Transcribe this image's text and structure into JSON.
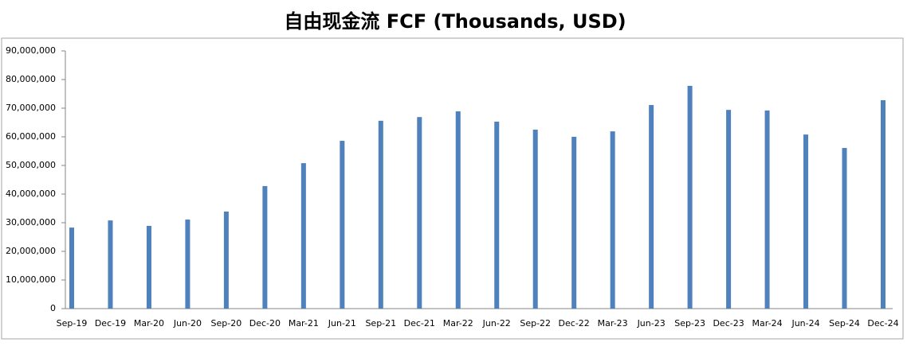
{
  "chart_data": {
    "type": "bar",
    "title": "自由现金流 FCF (Thousands, USD)",
    "categories": [
      "Sep-19",
      "Dec-19",
      "Mar-20",
      "Jun-20",
      "Sep-20",
      "Dec-20",
      "Mar-21",
      "Jun-21",
      "Sep-21",
      "Dec-21",
      "Mar-22",
      "Jun-22",
      "Sep-22",
      "Dec-22",
      "Mar-23",
      "Jun-23",
      "Sep-23",
      "Dec-23",
      "Mar-24",
      "Jun-24",
      "Sep-24",
      "Dec-24"
    ],
    "values": [
      28300000,
      30800000,
      28900000,
      31100000,
      33900000,
      42800000,
      50800000,
      58600000,
      65600000,
      66900000,
      68900000,
      65300000,
      62500000,
      60000000,
      61900000,
      71100000,
      77800000,
      69400000,
      69200000,
      60800000,
      56100000,
      72800000
    ],
    "color": "#4f81bd",
    "ylim": [
      0,
      90000000
    ],
    "yticks": [
      0,
      {
        "value": 10000000,
        "label": "10,000,000"
      },
      {
        "value": 20000000,
        "label": "20,000,000"
      },
      {
        "value": 30000000,
        "label": "30,000,000"
      },
      {
        "value": 40000000,
        "label": "40,000,000"
      },
      {
        "value": 50000000,
        "label": "50,000,000"
      },
      {
        "value": 60000000,
        "label": "60,000,000"
      },
      {
        "value": 70000000,
        "label": "70,000,000"
      },
      {
        "value": 80000000,
        "label": "80,000,000"
      },
      {
        "value": 90000000,
        "label": "90,000,000"
      }
    ],
    "grid": false
  }
}
